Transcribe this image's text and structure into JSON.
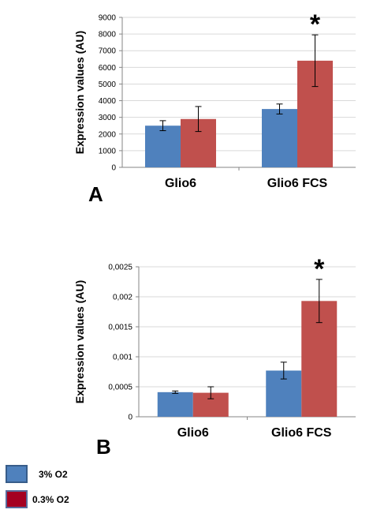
{
  "chart_data": [
    {
      "type": "bar",
      "panel_label": "A",
      "ylabel": "Expression values (AU)",
      "categories": [
        "Glio6",
        "Glio6 FCS"
      ],
      "ylim": [
        0,
        9000
      ],
      "yticks": [
        "0",
        "1000",
        "2000",
        "3000",
        "4000",
        "5000",
        "6000",
        "7000",
        "8000",
        "9000"
      ],
      "ytick_values": [
        0,
        1000,
        2000,
        3000,
        4000,
        5000,
        6000,
        7000,
        8000,
        9000
      ],
      "grid": true,
      "series": [
        {
          "name": "3% O2",
          "color": "#4f81bd",
          "values": [
            2500,
            3500
          ],
          "errors": [
            300,
            300
          ]
        },
        {
          "name": "0.3% O2",
          "color": "#c0504d",
          "values": [
            2900,
            6400
          ],
          "errors": [
            750,
            1550
          ]
        }
      ],
      "annotations": [
        {
          "text": "*",
          "category": "Glio6 FCS"
        }
      ]
    },
    {
      "type": "bar",
      "panel_label": "B",
      "ylabel": "Expression values (AU)",
      "categories": [
        "Glio6",
        "Glio6 FCS"
      ],
      "ylim": [
        0,
        0.0025
      ],
      "yticks": [
        "0",
        "0,0005",
        "0,001",
        "0,0015",
        "0,002",
        "0,0025"
      ],
      "ytick_values": [
        0,
        0.0005,
        0.001,
        0.0015,
        0.002,
        0.0025
      ],
      "grid": true,
      "series": [
        {
          "name": "3% O2",
          "color": "#4f81bd",
          "values": [
            0.00041,
            0.00077
          ],
          "errors": [
            2e-05,
            0.00014
          ]
        },
        {
          "name": "0.3% O2",
          "color": "#c0504d",
          "values": [
            0.0004,
            0.00193
          ],
          "errors": [
            0.0001,
            0.00036
          ]
        }
      ],
      "annotations": [
        {
          "text": "*",
          "category": "Glio6 FCS"
        }
      ]
    }
  ],
  "legend": {
    "items": [
      {
        "label": "3% O2",
        "color": "#4f81bd",
        "border": "#385d8a"
      },
      {
        "label": "0.3% O2",
        "color": "#a50021",
        "border": "#5a6a9a"
      }
    ]
  }
}
